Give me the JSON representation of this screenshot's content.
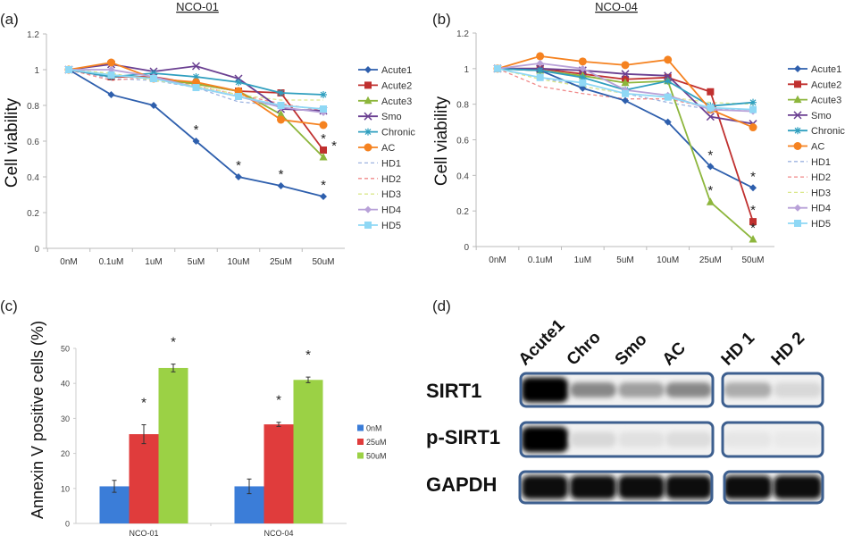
{
  "chart_data": [
    {
      "panel": "(a)",
      "type": "line",
      "title": "NCO-01",
      "ylabel": "Cell viability",
      "xlabel": "",
      "ylim": [
        0,
        1.2
      ],
      "yticks": [
        "0",
        "0.2",
        "0.4",
        "0.6",
        "0.8",
        "1",
        "1.2"
      ],
      "categories": [
        "0nM",
        "0.1uM",
        "1uM",
        "5uM",
        "10uM",
        "25uM",
        "50uM"
      ],
      "legend": "right",
      "grid": false,
      "series": [
        {
          "name": "Acute1",
          "color": "#2e5fad",
          "marker": "diamond",
          "dash": false,
          "values": [
            1,
            0.86,
            0.8,
            0.6,
            0.4,
            0.35,
            0.29
          ]
        },
        {
          "name": "Acute2",
          "color": "#c0302f",
          "marker": "square",
          "dash": false,
          "values": [
            1,
            0.96,
            0.96,
            0.92,
            0.88,
            0.87,
            0.55
          ]
        },
        {
          "name": "Acute3",
          "color": "#8db63c",
          "marker": "triangle",
          "dash": false,
          "values": [
            1,
            0.97,
            0.95,
            0.92,
            0.88,
            0.75,
            0.51
          ]
        },
        {
          "name": "Smo",
          "color": "#6a3f91",
          "marker": "x",
          "dash": false,
          "values": [
            1,
            1.03,
            0.99,
            1.02,
            0.95,
            0.78,
            0.77
          ]
        },
        {
          "name": "Chronic",
          "color": "#2f9fbf",
          "marker": "star",
          "dash": false,
          "values": [
            1,
            0.96,
            0.98,
            0.96,
            0.93,
            0.87,
            0.86
          ]
        },
        {
          "name": "AC",
          "color": "#f58220",
          "marker": "circle",
          "dash": false,
          "values": [
            1,
            1.04,
            0.95,
            0.93,
            0.88,
            0.72,
            0.69
          ]
        },
        {
          "name": "HD1",
          "color": "#9db3e0",
          "marker": "none",
          "dash": true,
          "values": [
            1,
            0.95,
            0.94,
            0.9,
            0.82,
            0.8,
            0.78
          ]
        },
        {
          "name": "HD2",
          "color": "#f08a8a",
          "marker": "none",
          "dash": true,
          "values": [
            1,
            0.94,
            0.96,
            0.91,
            0.86,
            0.81,
            0.77
          ]
        },
        {
          "name": "HD3",
          "color": "#dbe88c",
          "marker": "none",
          "dash": true,
          "values": [
            1,
            0.98,
            0.94,
            0.91,
            0.86,
            0.83,
            0.83
          ]
        },
        {
          "name": "HD4",
          "color": "#b8a1d8",
          "marker": "diamond",
          "dash": false,
          "values": [
            1,
            1.0,
            0.96,
            0.9,
            0.85,
            0.79,
            0.76
          ]
        },
        {
          "name": "HD5",
          "color": "#8fd8f5",
          "marker": "square",
          "dash": false,
          "values": [
            1,
            0.97,
            0.95,
            0.9,
            0.85,
            0.8,
            0.78
          ]
        }
      ],
      "significance": [
        {
          "series": "Acute1",
          "category": "5uM",
          "label": "*"
        },
        {
          "series": "Acute1",
          "category": "10uM",
          "label": "*"
        },
        {
          "series": "Acute1",
          "category": "25uM",
          "label": "*"
        },
        {
          "series": "Acute1",
          "category": "50uM",
          "label": "*"
        },
        {
          "series": "Acute2",
          "category": "50uM",
          "label": "*"
        },
        {
          "series": "Acute3",
          "category": "50uM",
          "label": "*"
        }
      ]
    },
    {
      "panel": "(b)",
      "type": "line",
      "title": "NCO-04",
      "ylabel": "Cell viability",
      "xlabel": "",
      "ylim": [
        0,
        1.2
      ],
      "yticks": [
        "0",
        "0.2",
        "0.4",
        "0.6",
        "0.8",
        "1",
        "1.2"
      ],
      "categories": [
        "0nM",
        "0.1uM",
        "1uM",
        "5uM",
        "10uM",
        "25uM",
        "50uM"
      ],
      "legend": "right",
      "grid": false,
      "series": [
        {
          "name": "Acute1",
          "color": "#2e5fad",
          "marker": "diamond",
          "dash": false,
          "values": [
            1,
            0.99,
            0.89,
            0.82,
            0.7,
            0.45,
            0.33
          ]
        },
        {
          "name": "Acute2",
          "color": "#c0302f",
          "marker": "square",
          "dash": false,
          "values": [
            1,
            1.0,
            0.97,
            0.94,
            0.95,
            0.87,
            0.14
          ]
        },
        {
          "name": "Acute3",
          "color": "#8db63c",
          "marker": "triangle",
          "dash": false,
          "values": [
            1,
            0.99,
            0.96,
            0.92,
            0.93,
            0.25,
            0.04
          ]
        },
        {
          "name": "Smo",
          "color": "#6a3f91",
          "marker": "x",
          "dash": false,
          "values": [
            1,
            1.0,
            0.99,
            0.97,
            0.96,
            0.73,
            0.69
          ]
        },
        {
          "name": "Chronic",
          "color": "#2f9fbf",
          "marker": "star",
          "dash": false,
          "values": [
            1,
            0.99,
            0.95,
            0.88,
            0.93,
            0.79,
            0.81
          ]
        },
        {
          "name": "AC",
          "color": "#f58220",
          "marker": "circle",
          "dash": false,
          "values": [
            1,
            1.07,
            1.04,
            1.02,
            1.05,
            0.77,
            0.67
          ]
        },
        {
          "name": "HD1",
          "color": "#9db3e0",
          "marker": "none",
          "dash": true,
          "values": [
            1,
            0.95,
            0.9,
            0.86,
            0.81,
            0.77,
            0.77
          ]
        },
        {
          "name": "HD2",
          "color": "#f08a8a",
          "marker": "none",
          "dash": true,
          "values": [
            1,
            0.9,
            0.86,
            0.83,
            0.83,
            0.78,
            0.77
          ]
        },
        {
          "name": "HD3",
          "color": "#dbe88c",
          "marker": "none",
          "dash": true,
          "values": [
            1,
            0.94,
            0.9,
            0.86,
            0.84,
            0.81,
            0.8
          ]
        },
        {
          "name": "HD4",
          "color": "#b8a1d8",
          "marker": "diamond",
          "dash": false,
          "values": [
            1,
            1.03,
            1.0,
            0.88,
            0.85,
            0.77,
            0.76
          ]
        },
        {
          "name": "HD5",
          "color": "#8fd8f5",
          "marker": "square",
          "dash": false,
          "values": [
            1,
            0.95,
            0.92,
            0.86,
            0.84,
            0.78,
            0.77
          ]
        }
      ],
      "significance": [
        {
          "series": "Acute1",
          "category": "25uM",
          "label": "*"
        },
        {
          "series": "Acute1",
          "category": "50uM",
          "label": "*"
        },
        {
          "series": "Acute3",
          "category": "25uM",
          "label": "*"
        },
        {
          "series": "Acute2",
          "category": "50uM",
          "label": "*"
        },
        {
          "series": "Acute3",
          "category": "50uM",
          "label": "*"
        }
      ]
    },
    {
      "panel": "(c)",
      "type": "bar",
      "title": "",
      "ylabel": "Annexin V positive cells (%)",
      "xlabel": "",
      "ylim": [
        0,
        50
      ],
      "yticks": [
        "0",
        "10",
        "20",
        "30",
        "40",
        "50"
      ],
      "categories": [
        "NCO-01",
        "NCO-04"
      ],
      "legend": "right",
      "grid": false,
      "series": [
        {
          "name": "0nM",
          "color": "#3b7dd8",
          "values": [
            10.6,
            10.6
          ],
          "errors": [
            1.7,
            2.1
          ],
          "significant": [
            false,
            false
          ]
        },
        {
          "name": "25uM",
          "color": "#e03c3c",
          "values": [
            25.5,
            28.3
          ],
          "errors": [
            2.7,
            0.6
          ],
          "significant": [
            true,
            true
          ]
        },
        {
          "name": "50uM",
          "color": "#9bd145",
          "values": [
            44.4,
            41.0
          ],
          "errors": [
            1.1,
            0.8
          ],
          "significant": [
            true,
            true
          ]
        }
      ],
      "significance_label": "*"
    }
  ],
  "western_blot": {
    "panel": "(d)",
    "lanes": [
      "Acute1",
      "Chro",
      "Smo",
      "AC",
      "HD 1",
      "HD 2"
    ],
    "rows": [
      {
        "label": "SIRT1",
        "band_intensity": [
          1.0,
          0.45,
          0.35,
          0.45,
          0.3,
          0.12
        ]
      },
      {
        "label": "p-SIRT1",
        "band_intensity": [
          1.0,
          0.12,
          0.08,
          0.1,
          0.06,
          0.05
        ]
      },
      {
        "label": "GAPDH",
        "band_intensity": [
          0.95,
          0.95,
          0.95,
          0.95,
          0.97,
          0.97
        ]
      }
    ],
    "frame_color": "#3d5f8f"
  }
}
